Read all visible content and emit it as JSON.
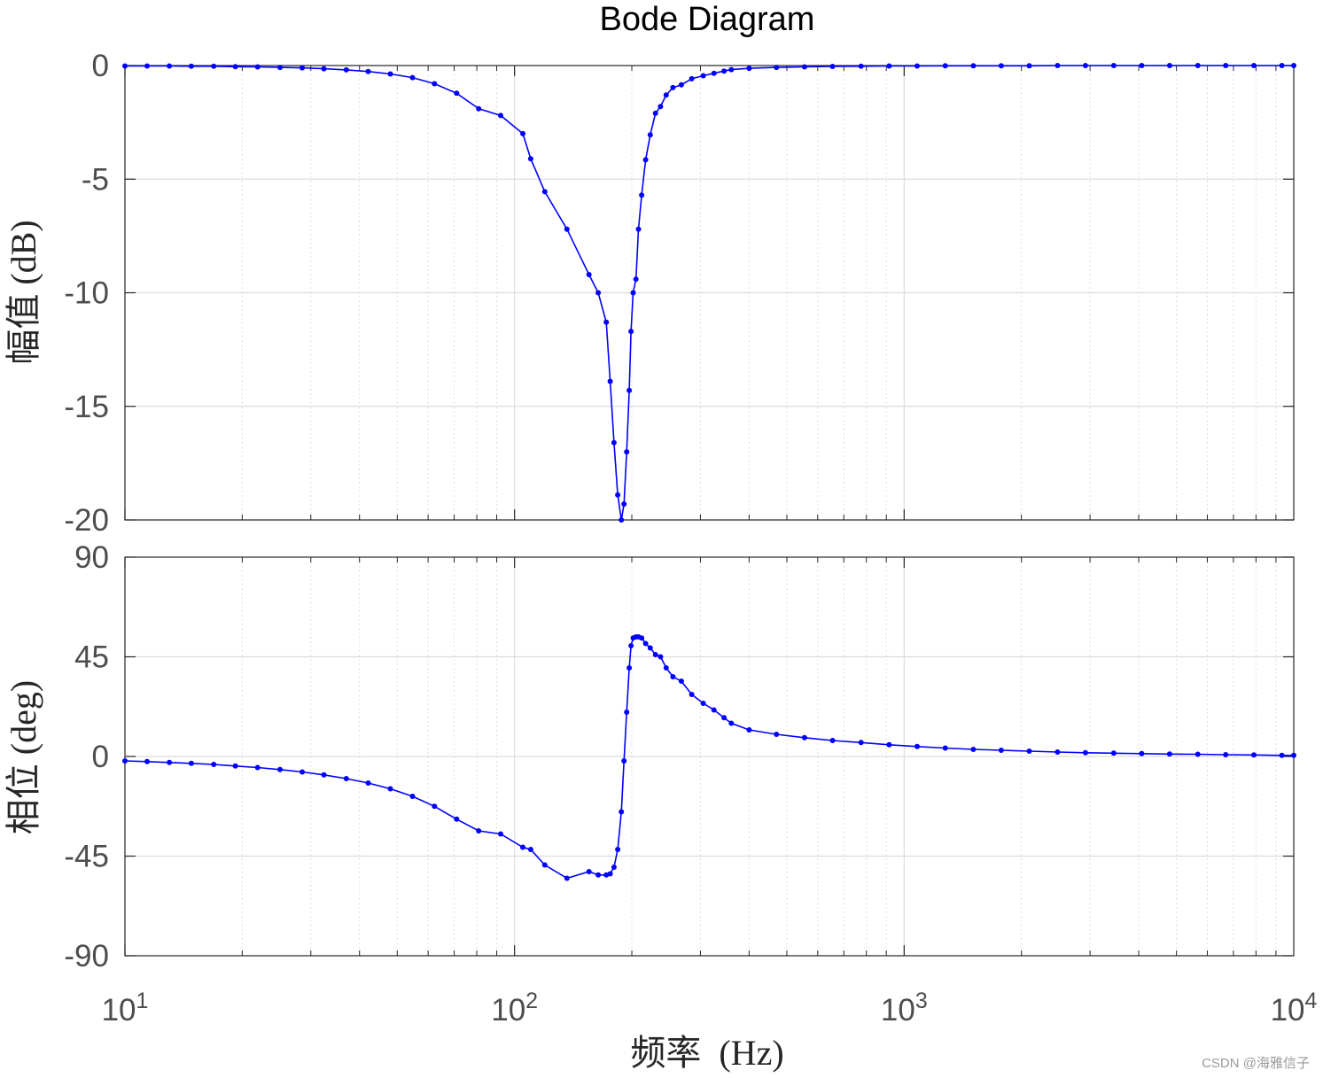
{
  "chart_data": [
    {
      "type": "line",
      "panel": "magnitude",
      "title": "Bode Diagram",
      "ylabel": "幅值 (dB)",
      "xscale": "log",
      "xlim": [
        10,
        10000
      ],
      "ylim": [
        -20,
        0
      ],
      "yticks": [
        "0",
        "-5",
        "-10",
        "-15",
        "-20"
      ],
      "grid": true,
      "color": "#0000ff",
      "series": [
        {
          "x": [
            10,
            11.4,
            13,
            14.8,
            16.9,
            19.2,
            21.9,
            25,
            28.5,
            32.4,
            37,
            42.1,
            48,
            54.7,
            62.3,
            71,
            80.9,
            92.1,
            105,
            110,
            119.6,
            136.3,
            155.3,
            164,
            172,
            176,
            180,
            184,
            188,
            191,
            194,
            197,
            199,
            201.6,
            205,
            208,
            212,
            217,
            223,
            230,
            237,
            245,
            255,
            268,
            285,
            305,
            325,
            345,
            360,
            400,
            470,
            555,
            655,
            775,
            915,
            1080,
            1275,
            1505,
            1775,
            2095,
            2475,
            2920,
            3450,
            4070,
            4800,
            5670,
            6690,
            7900,
            9320,
            10000
          ],
          "y": [
            -0.02,
            -0.02,
            -0.02,
            -0.03,
            -0.03,
            -0.05,
            -0.06,
            -0.08,
            -0.1,
            -0.14,
            -0.19,
            -0.26,
            -0.37,
            -0.53,
            -0.8,
            -1.22,
            -1.9,
            -2.2,
            -3.0,
            -4.1,
            -5.55,
            -7.2,
            -9.2,
            -10.0,
            -11.3,
            -13.9,
            -16.6,
            -18.9,
            -20.0,
            -19.3,
            -17.0,
            -14.3,
            -11.7,
            -10.0,
            -9.4,
            -7.2,
            -5.7,
            -4.15,
            -3.05,
            -2.1,
            -1.8,
            -1.3,
            -0.97,
            -0.85,
            -0.58,
            -0.45,
            -0.34,
            -0.24,
            -0.18,
            -0.12,
            -0.08,
            -0.06,
            -0.04,
            -0.03,
            -0.02,
            -0.02,
            -0.01,
            -0.01,
            -0.01,
            -0.01,
            0,
            0,
            0,
            0,
            0,
            0,
            0,
            0,
            0,
            0
          ]
        }
      ]
    },
    {
      "type": "line",
      "panel": "phase",
      "ylabel": "相位 (deg)",
      "xlabel": "频率  (Hz)",
      "xscale": "log",
      "xlim": [
        10,
        10000
      ],
      "ylim": [
        -90,
        90
      ],
      "yticks": [
        "90",
        "45",
        "0",
        "-45",
        "-90"
      ],
      "xticks": [
        {
          "base": "10",
          "exp": "1",
          "value": 10
        },
        {
          "base": "10",
          "exp": "2",
          "value": 100
        },
        {
          "base": "10",
          "exp": "3",
          "value": 1000
        },
        {
          "base": "10",
          "exp": "4",
          "value": 10000
        }
      ],
      "grid": true,
      "color": "#0000ff",
      "series": [
        {
          "x": [
            10,
            11.4,
            13,
            14.8,
            16.9,
            19.2,
            21.9,
            25,
            28.5,
            32.4,
            37,
            42.1,
            48,
            54.7,
            62.3,
            71,
            80.9,
            92.1,
            105,
            110,
            119.6,
            136.3,
            155.3,
            164,
            172,
            176,
            180,
            184,
            188,
            191,
            194,
            197,
            199,
            201.6,
            205,
            208,
            212,
            217,
            223,
            230,
            237,
            245,
            255,
            268,
            285,
            305,
            325,
            345,
            360,
            400,
            470,
            555,
            655,
            775,
            915,
            1080,
            1275,
            1505,
            1775,
            2095,
            2475,
            2920,
            3450,
            4070,
            4800,
            5670,
            6690,
            7900,
            9320,
            10000
          ],
          "y": [
            -2,
            -2.3,
            -2.7,
            -3.1,
            -3.6,
            -4.3,
            -5,
            -5.9,
            -7,
            -8.3,
            -10,
            -12,
            -14.6,
            -18,
            -22.5,
            -28.3,
            -33.6,
            -35,
            -41,
            -42,
            -49,
            -55,
            -52,
            -53.5,
            -53.5,
            -53,
            -50,
            -42,
            -25,
            -2,
            20,
            40,
            50,
            53.5,
            54,
            54,
            53.5,
            51,
            49,
            46,
            45,
            40,
            36,
            34,
            28,
            24,
            21,
            17.5,
            15,
            12,
            10,
            8.5,
            7.2,
            6.3,
            5.3,
            4.5,
            3.8,
            3.2,
            2.8,
            2.4,
            2,
            1.7,
            1.5,
            1.3,
            1.1,
            1,
            0.8,
            0.7,
            0.5,
            0.5
          ]
        }
      ]
    }
  ],
  "watermark": "CSDN @海雅信子"
}
